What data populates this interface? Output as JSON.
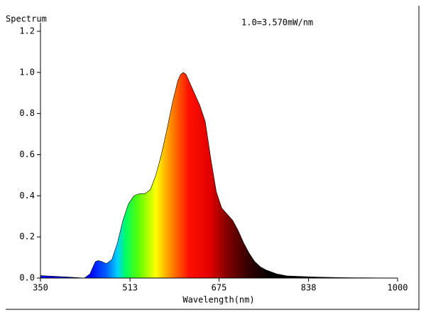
{
  "chart_data": {
    "type": "area",
    "title": "Spectrum",
    "annotation": "1.0=3.570mW/nm",
    "x_label": "Wavelength(nm)",
    "x": [
      350,
      400,
      430,
      440,
      450,
      455,
      462,
      470,
      480,
      490,
      500,
      510,
      520,
      530,
      540,
      550,
      560,
      570,
      580,
      590,
      600,
      605,
      610,
      615,
      620,
      630,
      640,
      650,
      660,
      670,
      680,
      690,
      700,
      710,
      720,
      730,
      740,
      750,
      760,
      780,
      800,
      850,
      900,
      1000
    ],
    "values": [
      0.012,
      0.005,
      0.0,
      0.02,
      0.08,
      0.085,
      0.08,
      0.07,
      0.09,
      0.17,
      0.28,
      0.36,
      0.4,
      0.41,
      0.41,
      0.43,
      0.5,
      0.6,
      0.72,
      0.85,
      0.96,
      0.99,
      1.0,
      0.99,
      0.96,
      0.9,
      0.84,
      0.76,
      0.58,
      0.42,
      0.34,
      0.31,
      0.28,
      0.23,
      0.17,
      0.12,
      0.08,
      0.055,
      0.04,
      0.02,
      0.01,
      0.005,
      0.002,
      0.0
    ],
    "xlim": [
      350,
      1000
    ],
    "xticks": [
      350,
      513,
      675,
      838,
      1000
    ],
    "ylim": [
      0,
      1.2
    ],
    "yticks": [
      {
        "value": 0,
        "label": "0.0"
      },
      0.2,
      0.4,
      0.6,
      0.8,
      {
        "value": 1,
        "label": "1.0"
      },
      1.2
    ]
  }
}
